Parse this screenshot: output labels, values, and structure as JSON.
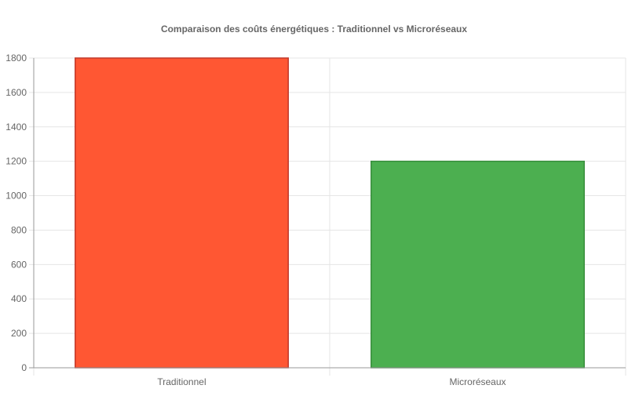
{
  "chart_data": {
    "type": "bar",
    "title": "Comparaison des coûts énergétiques : Traditionnel vs Microréseaux",
    "xlabel": "",
    "ylabel": "",
    "categories": [
      "Traditionnel",
      "Microréseaux"
    ],
    "values": [
      1800,
      1200
    ],
    "ylim": [
      0,
      1800
    ],
    "yticks": [
      0,
      200,
      400,
      600,
      800,
      1000,
      1200,
      1400,
      1600,
      1800
    ],
    "grid": true,
    "legend": "none",
    "colors": {
      "fill": [
        "#FF5733",
        "#4CAF50"
      ],
      "border": [
        "#C0392B",
        "#388E3C"
      ],
      "grid": "#e5e5e5",
      "axis": "#9a9a9a",
      "text": "#666666",
      "title": "#666666"
    }
  }
}
